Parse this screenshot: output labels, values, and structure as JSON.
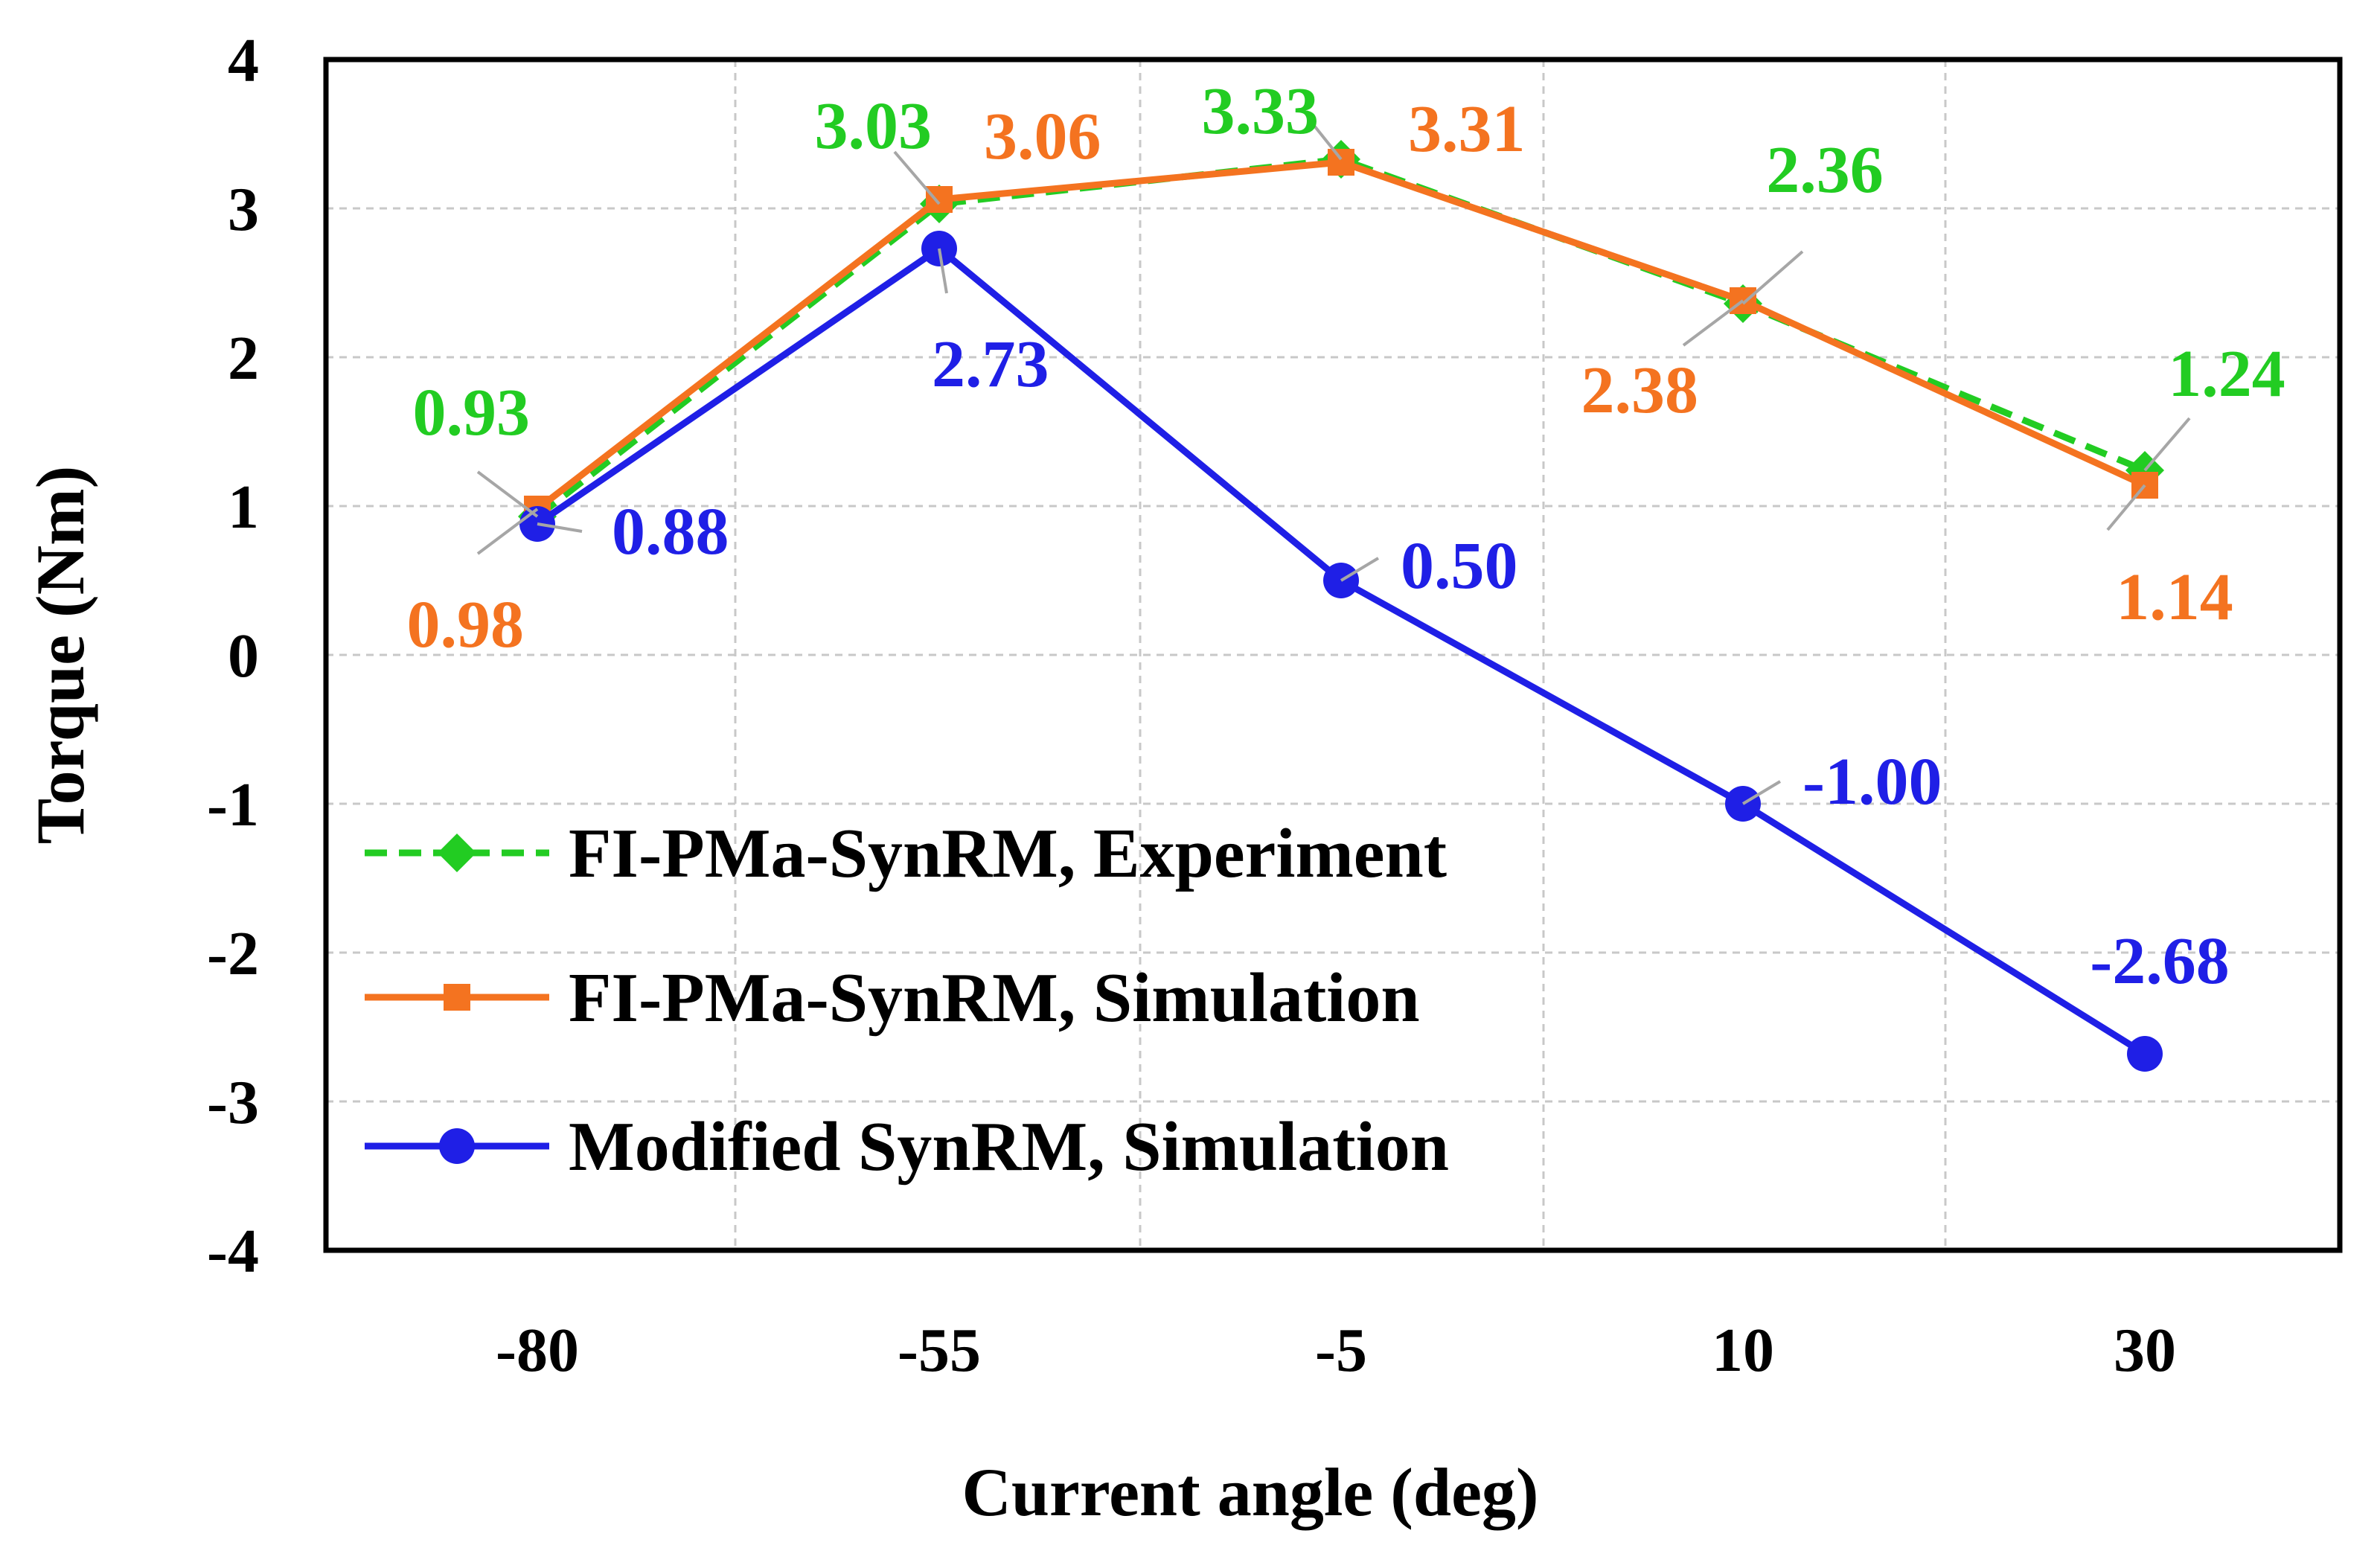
{
  "chart_data": {
    "type": "line",
    "title": "",
    "xlabel": "Current angle (deg)",
    "ylabel": "Torque (Nm)",
    "categories": [
      "-80",
      "-55",
      "-5",
      "10",
      "30"
    ],
    "ylim": [
      -4,
      4
    ],
    "yticks": [
      "4",
      "3",
      "2",
      "1",
      "0",
      "-1",
      "-2",
      "-3",
      "-4"
    ],
    "grid": true,
    "legend_position": "bottom-left",
    "series": [
      {
        "name": "FI-PMa-SynRM, Experiment",
        "values": [
          0.93,
          3.03,
          3.33,
          2.36,
          1.24
        ],
        "labels": [
          "0.93",
          "3.03",
          "3.33",
          "2.36",
          "1.24"
        ],
        "color": "#22cc22",
        "line_style": "dashed",
        "marker": "diamond"
      },
      {
        "name": "FI-PMa-SynRM, Simulation",
        "values": [
          0.98,
          3.06,
          3.31,
          2.38,
          1.14
        ],
        "labels": [
          "0.98",
          "3.06",
          "3.31",
          "2.38",
          "1.14"
        ],
        "color": "#f47320",
        "line_style": "solid",
        "marker": "square"
      },
      {
        "name": "Modified SynRM, Simulation",
        "values": [
          0.88,
          2.73,
          0.5,
          -1.0,
          -2.68
        ],
        "labels": [
          "0.88",
          "2.73",
          "0.50",
          "-1.00",
          "-2.68"
        ],
        "color": "#1f1fe6",
        "line_style": "solid",
        "marker": "circle"
      }
    ]
  }
}
